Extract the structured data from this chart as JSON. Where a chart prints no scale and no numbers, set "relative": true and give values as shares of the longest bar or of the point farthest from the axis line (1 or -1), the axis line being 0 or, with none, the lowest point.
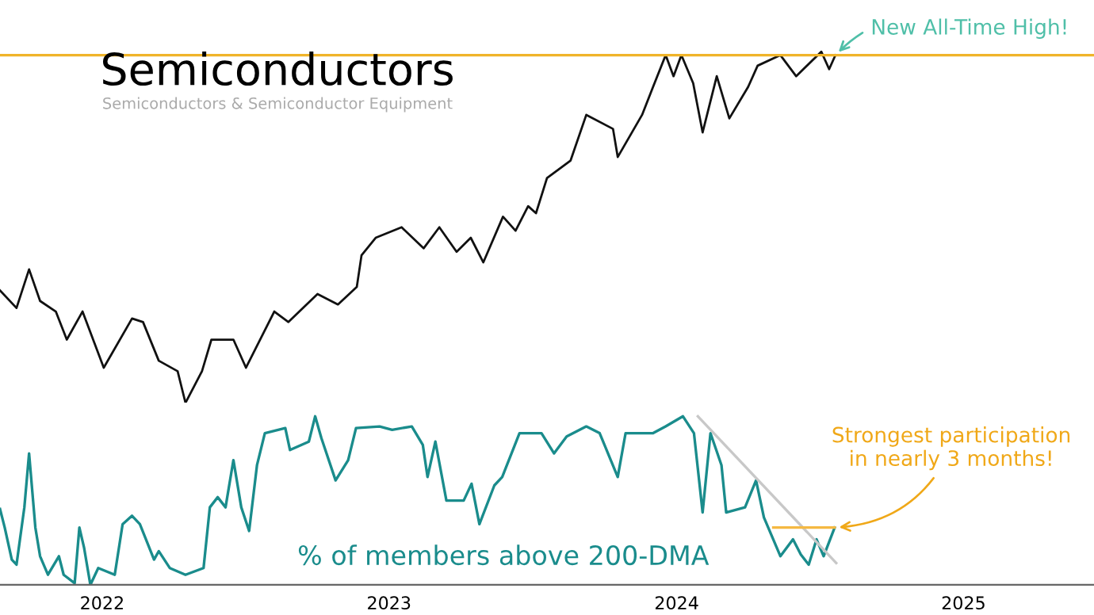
{
  "chart_data": [
    {
      "type": "line",
      "relative": true,
      "title": "Semiconductors",
      "subtitle": "Semiconductors & Semiconductor Equipment",
      "xlim": [
        "2022-02-22",
        "2025-12-15"
      ],
      "series": [
        {
          "color": "#111111",
          "x": [
            "2022-02-22",
            "2022-03-15",
            "2022-03-31",
            "2022-04-14",
            "2022-05-04",
            "2022-05-18",
            "2022-06-07",
            "2022-07-04",
            "2022-08-09",
            "2022-08-23",
            "2022-09-12",
            "2022-10-06",
            "2022-10-16",
            "2022-11-06",
            "2022-11-18",
            "2022-12-16",
            "2023-01-01",
            "2023-02-06",
            "2023-02-24",
            "2023-04-02",
            "2023-04-28",
            "2023-05-22",
            "2023-05-28",
            "2023-06-15",
            "2023-07-18",
            "2023-08-15",
            "2023-09-04",
            "2023-09-26",
            "2023-10-14",
            "2023-10-30",
            "2023-11-24",
            "2023-12-10",
            "2023-12-26",
            "2024-01-05",
            "2024-01-19",
            "2024-02-18",
            "2024-03-09",
            "2024-04-12",
            "2024-04-18",
            "2024-05-19",
            "2024-06-02",
            "2024-06-18",
            "2024-06-28",
            "2024-07-08",
            "2024-07-23",
            "2024-08-04",
            "2024-08-22",
            "2024-09-07",
            "2024-10-01",
            "2024-10-13",
            "2024-11-11",
            "2024-12-01",
            "2025-01-02",
            "2025-01-12",
            "2025-01-20"
          ],
          "values": [
            0.32,
            0.27,
            0.38,
            0.29,
            0.26,
            0.18,
            0.26,
            0.1,
            0.24,
            0.23,
            0.12,
            0.09,
            0,
            0.09,
            0.18,
            0.18,
            0.1,
            0.26,
            0.23,
            0.31,
            0.28,
            0.33,
            0.42,
            0.47,
            0.5,
            0.44,
            0.5,
            0.43,
            0.47,
            0.4,
            0.53,
            0.49,
            0.56,
            0.54,
            0.64,
            0.69,
            0.82,
            0.78,
            0.7,
            0.82,
            0.9,
            0.99,
            0.93,
            0.99,
            0.91,
            0.77,
            0.93,
            0.81,
            0.9,
            0.96,
            0.99,
            0.93,
            1,
            0.95,
            0.99
          ]
        }
      ],
      "ref_lines": [
        {
          "axis": "y",
          "value": 0.99,
          "color": "#f0b429"
        }
      ],
      "annotations": [
        {
          "text": "New All-Time High!",
          "x": "2025-01-20",
          "y": 0.99
        }
      ]
    },
    {
      "type": "line",
      "relative": true,
      "xlim": [
        "2022-02-22",
        "2025-12-15"
      ],
      "xticks": [
        {
          "value": "2022-07-02",
          "label": "2022"
        },
        {
          "value": "2023-07-02",
          "label": "2023"
        },
        {
          "value": "2024-07-02",
          "label": "2024"
        },
        {
          "value": "2025-07-02",
          "label": "2025"
        }
      ],
      "series": [
        {
          "name": "% of members above 200-DMA",
          "color": "#1a8c8c",
          "x": [
            "2022-02-22",
            "2022-02-28",
            "2022-03-09",
            "2022-03-15",
            "2022-03-25",
            "2022-03-31",
            "2022-04-08",
            "2022-04-14",
            "2022-04-24",
            "2022-05-08",
            "2022-05-14",
            "2022-05-28",
            "2022-06-03",
            "2022-06-09",
            "2022-06-17",
            "2022-06-27",
            "2022-07-18",
            "2022-07-28",
            "2022-08-09",
            "2022-08-19",
            "2022-09-06",
            "2022-09-12",
            "2022-09-26",
            "2022-10-16",
            "2022-11-08",
            "2022-11-16",
            "2022-11-26",
            "2022-12-06",
            "2022-12-16",
            "2022-12-26",
            "2023-01-05",
            "2023-01-15",
            "2023-01-25",
            "2023-02-20",
            "2023-02-26",
            "2023-03-22",
            "2023-03-30",
            "2023-04-07",
            "2023-04-25",
            "2023-05-11",
            "2023-05-21",
            "2023-06-20",
            "2023-07-06",
            "2023-07-31",
            "2023-08-14",
            "2023-08-20",
            "2023-08-30",
            "2023-09-13",
            "2023-10-05",
            "2023-10-15",
            "2023-10-25",
            "2023-11-13",
            "2023-11-23",
            "2023-12-15",
            "2024-01-12",
            "2024-01-28",
            "2024-02-13",
            "2024-03-09",
            "2024-03-26",
            "2024-04-18",
            "2024-04-28",
            "2024-06-02",
            "2024-06-18",
            "2024-07-10",
            "2024-07-24",
            "2024-08-04",
            "2024-08-14",
            "2024-08-28",
            "2024-09-03",
            "2024-09-27",
            "2024-10-11",
            "2024-10-21",
            "2024-11-11",
            "2024-11-27",
            "2024-12-07",
            "2024-12-17",
            "2024-12-27",
            "2025-01-05",
            "2025-01-19"
          ],
          "values": [
            0.45,
            0.34,
            0.15,
            0.12,
            0.46,
            0.78,
            0.34,
            0.17,
            0.06,
            0.17,
            0.06,
            0.01,
            0.34,
            0.22,
            0,
            0.1,
            0.06,
            0.36,
            0.41,
            0.36,
            0.15,
            0.2,
            0.1,
            0.06,
            0.1,
            0.46,
            0.52,
            0.46,
            0.74,
            0.46,
            0.32,
            0.71,
            0.9,
            0.93,
            0.8,
            0.85,
            1,
            0.87,
            0.62,
            0.74,
            0.93,
            0.94,
            0.92,
            0.94,
            0.83,
            0.64,
            0.85,
            0.5,
            0.5,
            0.6,
            0.36,
            0.59,
            0.64,
            0.9,
            0.9,
            0.78,
            0.88,
            0.94,
            0.9,
            0.64,
            0.9,
            0.9,
            0.94,
            1,
            0.9,
            0.43,
            0.9,
            0.71,
            0.43,
            0.46,
            0.62,
            0.4,
            0.17,
            0.27,
            0.18,
            0.12,
            0.27,
            0.17,
            0.34
          ]
        },
        {
          "type": "line",
          "color": "#c8c8c8",
          "x": [
            "2024-07-29",
            "2025-01-21"
          ],
          "values": [
            1,
            0.13
          ]
        },
        {
          "type": "line",
          "color": "#f5b942",
          "x": [
            "2024-11-02",
            "2025-01-19"
          ],
          "values": [
            0.34,
            0.34
          ]
        }
      ],
      "annotations": [
        {
          "text": "Strongest participation\nin nearly 3 months!",
          "x": "2025-01-19",
          "y": 0.34
        }
      ]
    }
  ]
}
